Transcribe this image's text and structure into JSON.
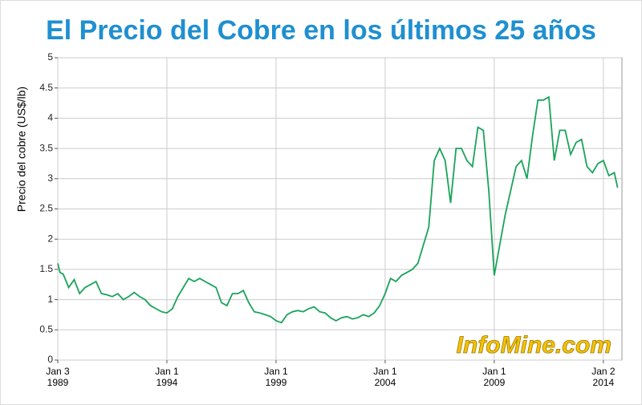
{
  "chart_data": {
    "type": "line",
    "title": "El Precio del Cobre en los últimos 25 años",
    "y_label": "Precio del cobre (US$/lb)",
    "watermark": "InfoMine.com",
    "x": [
      1989.0,
      1989.1,
      1989.25,
      1989.5,
      1989.75,
      1990.0,
      1990.25,
      1990.5,
      1990.75,
      1991.0,
      1991.25,
      1991.5,
      1991.75,
      1992.0,
      1992.25,
      1992.5,
      1992.75,
      1993.0,
      1993.25,
      1993.5,
      1993.75,
      1994.0,
      1994.25,
      1994.5,
      1994.75,
      1995.0,
      1995.25,
      1995.5,
      1995.75,
      1996.0,
      1996.25,
      1996.5,
      1996.75,
      1997.0,
      1997.25,
      1997.5,
      1997.75,
      1998.0,
      1998.25,
      1998.5,
      1998.75,
      1999.0,
      1999.25,
      1999.5,
      1999.75,
      2000.0,
      2000.25,
      2000.5,
      2000.75,
      2001.0,
      2001.25,
      2001.5,
      2001.75,
      2002.0,
      2002.25,
      2002.5,
      2002.75,
      2003.0,
      2003.25,
      2003.5,
      2003.75,
      2004.0,
      2004.25,
      2004.5,
      2004.75,
      2005.0,
      2005.25,
      2005.5,
      2005.75,
      2006.0,
      2006.25,
      2006.5,
      2006.75,
      2007.0,
      2007.25,
      2007.5,
      2007.75,
      2008.0,
      2008.25,
      2008.5,
      2008.75,
      2009.0,
      2009.25,
      2009.5,
      2009.75,
      2010.0,
      2010.25,
      2010.5,
      2010.75,
      2011.0,
      2011.25,
      2011.5,
      2011.75,
      2012.0,
      2012.25,
      2012.5,
      2012.75,
      2013.0,
      2013.25,
      2013.5,
      2013.75,
      2014.0,
      2014.25,
      2014.5,
      2014.65
    ],
    "series": [
      {
        "name": "Cobre",
        "color": "#1aa35a",
        "values": [
          1.6,
          1.45,
          1.42,
          1.2,
          1.33,
          1.1,
          1.2,
          1.25,
          1.3,
          1.1,
          1.08,
          1.05,
          1.1,
          1.0,
          1.05,
          1.12,
          1.05,
          1.0,
          0.9,
          0.85,
          0.8,
          0.78,
          0.85,
          1.05,
          1.2,
          1.35,
          1.3,
          1.35,
          1.3,
          1.25,
          1.2,
          0.95,
          0.9,
          1.1,
          1.1,
          1.15,
          0.95,
          0.8,
          0.78,
          0.75,
          0.72,
          0.65,
          0.62,
          0.75,
          0.8,
          0.82,
          0.8,
          0.85,
          0.88,
          0.8,
          0.78,
          0.7,
          0.65,
          0.7,
          0.72,
          0.68,
          0.7,
          0.75,
          0.72,
          0.78,
          0.9,
          1.1,
          1.35,
          1.3,
          1.4,
          1.45,
          1.5,
          1.6,
          1.9,
          2.2,
          3.3,
          3.5,
          3.3,
          2.6,
          3.5,
          3.5,
          3.3,
          3.2,
          3.85,
          3.8,
          2.8,
          1.4,
          1.9,
          2.4,
          2.8,
          3.2,
          3.3,
          3.0,
          3.7,
          4.3,
          4.3,
          4.35,
          3.3,
          3.8,
          3.8,
          3.4,
          3.6,
          3.65,
          3.2,
          3.1,
          3.25,
          3.3,
          3.05,
          3.1,
          2.85
        ]
      }
    ],
    "xlim": [
      1989.0,
      2014.85
    ],
    "xticks": [
      {
        "value": 1989.0,
        "label": "Jan 3\n1989"
      },
      {
        "value": 1994.0,
        "label": "Jan 1\n1994"
      },
      {
        "value": 1999.0,
        "label": "Jan 1\n1999"
      },
      {
        "value": 2004.0,
        "label": "Jan 1\n2004"
      },
      {
        "value": 2009.0,
        "label": "Jan 1\n2009"
      },
      {
        "value": 2014.0,
        "label": "Jan 2\n2014"
      }
    ],
    "ylim": [
      0,
      5
    ],
    "yticks": [
      0,
      0.5,
      1,
      1.5,
      2,
      2.5,
      3,
      3.5,
      4,
      4.5,
      5
    ],
    "grid": true
  }
}
